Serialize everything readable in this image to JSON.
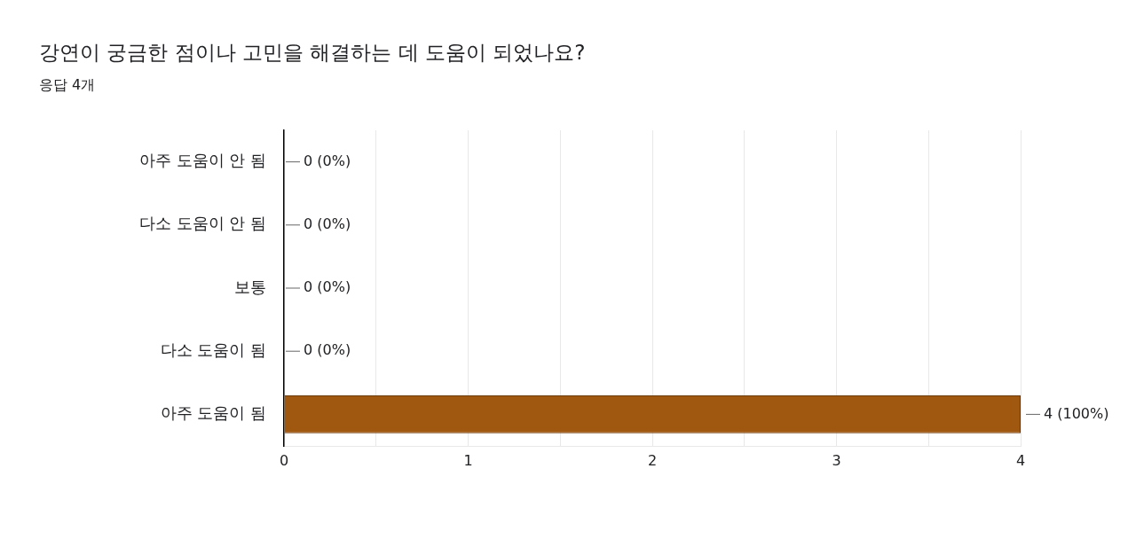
{
  "chart_data": {
    "type": "bar",
    "orientation": "horizontal",
    "title": "강연이 궁금한 점이나 고민을 해결하는 데 도움이 되었나요?",
    "subtitle": "응답 4개",
    "categories": [
      "아주 도움이 안 됨",
      "다소 도움이 안 됨",
      "보통",
      "다소 도움이 됨",
      "아주 도움이 됨"
    ],
    "values": [
      0,
      0,
      0,
      0,
      4
    ],
    "value_labels": [
      "0 (0%)",
      "0 (0%)",
      "0 (0%)",
      "0 (0%)",
      "4 (100%)"
    ],
    "color": "#a0570f",
    "xlim": [
      0,
      4
    ],
    "xticks": [
      0,
      {
        "value": 0.5,
        "label": null
      },
      1,
      {
        "value": 1.5,
        "label": null
      },
      2,
      {
        "value": 2.5,
        "label": null
      },
      3,
      {
        "value": 3.5,
        "label": null
      },
      4
    ],
    "grid": "x",
    "legend": false
  }
}
